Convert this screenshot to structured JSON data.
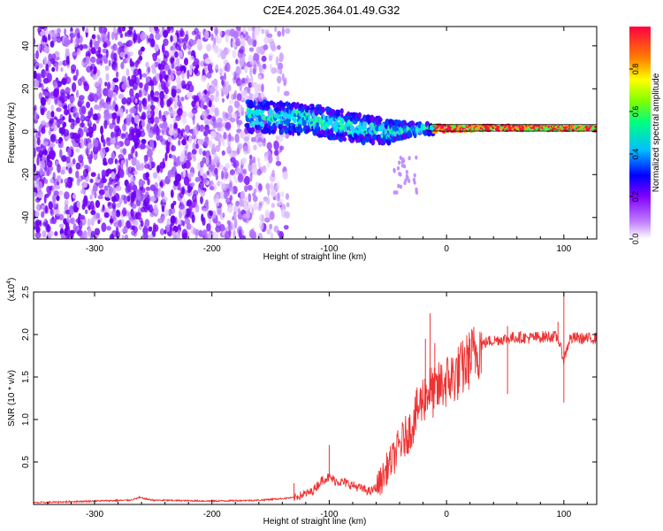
{
  "title": "C2E4.2025.364.01.49.G32",
  "chart_data": [
    {
      "type": "heatmap",
      "panel": "spectrogram",
      "xlabel": "Height of straight line (km)",
      "ylabel": "Frequency (Hz)",
      "xlim": [
        -352,
        128
      ],
      "ylim": [
        -50,
        49
      ],
      "xticks": [
        -300,
        -200,
        -100,
        0,
        100
      ],
      "xtick_labels": [
        "-300",
        "-200",
        "-100",
        "0",
        "100"
      ],
      "yticks": [
        -40,
        -20,
        0,
        20,
        40
      ],
      "ytick_labels": [
        "-40",
        "-20",
        "0",
        "20",
        "40"
      ],
      "noise_region_x": [
        -352,
        -135
      ],
      "signal_band_x": [
        -170,
        128
      ],
      "signal_band_center_hz": [
        [
          -170,
          7
        ],
        [
          -120,
          6
        ],
        [
          -80,
          2
        ],
        [
          -50,
          0
        ],
        [
          -30,
          1
        ],
        [
          0,
          1.5
        ],
        [
          50,
          1.8
        ],
        [
          128,
          1.5
        ]
      ],
      "signal_band_halfwidth_hz": [
        [
          -170,
          7
        ],
        [
          -100,
          7
        ],
        [
          -60,
          6
        ],
        [
          -30,
          3
        ],
        [
          0,
          1.5
        ],
        [
          128,
          1.2
        ]
      ],
      "colorbar": {
        "label": "Normalized spectral amplitude",
        "range": [
          0,
          1
        ],
        "ticks": [
          0.0,
          0.2,
          0.4,
          0.6,
          0.8
        ],
        "tick_labels": [
          "0.0",
          "0.2",
          "0.4",
          "0.6",
          "0.8"
        ],
        "colors": [
          "#ffffff",
          "#a000ff",
          "#0000ff",
          "#00ffff",
          "#00ff00",
          "#ffff00",
          "#ff8000",
          "#ff0000"
        ]
      }
    },
    {
      "type": "line",
      "panel": "snr",
      "xlabel": "Height of straight line (km)",
      "ylabel": "SNR (10 * v/v)",
      "y_multiplier": "(x10",
      "y_multiplier_exp": "4",
      "y_multiplier_close": ")",
      "xlim": [
        -352,
        128
      ],
      "ylim": [
        0,
        2.5
      ],
      "xticks": [
        -300,
        -200,
        -100,
        0,
        100
      ],
      "xtick_labels": [
        "-300",
        "-200",
        "-100",
        "0",
        "100"
      ],
      "yticks": [
        0.5,
        1.0,
        1.5,
        2.0,
        2.5
      ],
      "ytick_labels": [
        "0.5",
        "1.0",
        "1.5",
        "2.0",
        "2.5"
      ],
      "series": [
        {
          "name": "SNR",
          "color": "#ee3333",
          "x": [
            -352,
            -300,
            -270,
            -262,
            -250,
            -200,
            -160,
            -130,
            -115,
            -105,
            -100,
            -95,
            -85,
            -75,
            -65,
            -60,
            -55,
            -50,
            -45,
            -40,
            -35,
            -30,
            -25,
            -20,
            -15,
            -10,
            -5,
            0,
            5,
            10,
            15,
            20,
            25,
            30,
            35,
            40,
            50,
            60,
            70,
            80,
            90,
            95,
            100,
            105,
            110,
            120,
            128
          ],
          "y": [
            0.02,
            0.04,
            0.05,
            0.08,
            0.05,
            0.04,
            0.05,
            0.08,
            0.15,
            0.3,
            0.32,
            0.28,
            0.25,
            0.2,
            0.15,
            0.2,
            0.3,
            0.45,
            0.55,
            0.7,
            0.8,
            0.9,
            1.1,
            1.25,
            1.35,
            1.3,
            1.4,
            1.45,
            1.5,
            1.55,
            1.62,
            1.72,
            1.8,
            1.88,
            1.92,
            1.93,
            1.95,
            1.97,
            1.96,
            1.97,
            1.98,
            1.96,
            1.7,
            1.95,
            1.96,
            1.95,
            1.96
          ],
          "spikes": [
            [
              -14,
              2.25
            ],
            [
              -18,
              1.95
            ],
            [
              -10,
              1.9
            ],
            [
              10,
              1.75
            ],
            [
              20,
              1.95
            ],
            [
              52,
              2.1
            ],
            [
              52,
              1.3
            ],
            [
              95,
              2.15
            ],
            [
              100,
              2.5
            ],
            [
              100,
              1.2
            ],
            [
              -100,
              0.7
            ],
            [
              -130,
              0.25
            ],
            [
              -262,
              0.1
            ]
          ]
        }
      ]
    }
  ]
}
